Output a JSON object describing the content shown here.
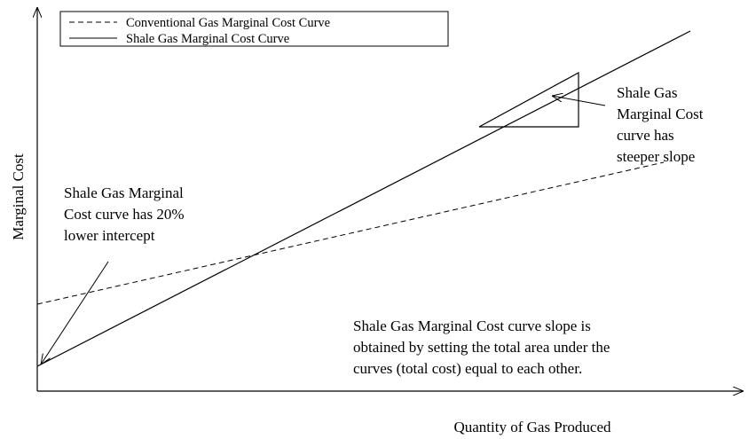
{
  "legend": [
    "Conventional Gas Marginal Cost Curve",
    "Shale Gas Marginal Cost Curve"
  ],
  "y_axis_label": "Marginal Cost",
  "x_axis_label": "Quantity of Gas Produced",
  "annotations": [
    [
      "Shale Gas",
      "Marginal Cost",
      "curve has",
      "steeper slope"
    ],
    [
      "Shale Gas Marginal",
      "Cost curve has 20%",
      "lower intercept"
    ],
    [
      "Shale Gas Marginal Cost curve slope is",
      "obtained by setting the total area under the",
      "curves (total cost) equal to each other."
    ]
  ]
}
